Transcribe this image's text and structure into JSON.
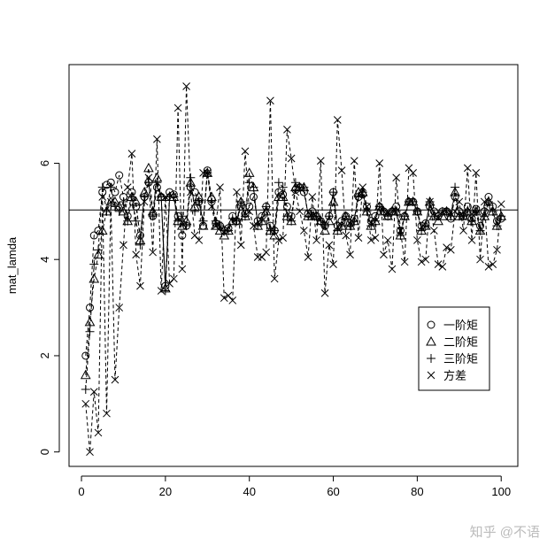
{
  "chart_data": {
    "type": "line",
    "y_label": "mat_lamda",
    "x": [
      1,
      2,
      3,
      4,
      5,
      6,
      7,
      8,
      9,
      10,
      11,
      12,
      13,
      14,
      15,
      16,
      17,
      18,
      19,
      20,
      21,
      22,
      23,
      24,
      25,
      26,
      27,
      28,
      29,
      30,
      31,
      32,
      33,
      34,
      35,
      36,
      37,
      38,
      39,
      40,
      41,
      42,
      43,
      44,
      45,
      46,
      47,
      48,
      49,
      50,
      51,
      52,
      53,
      54,
      55,
      56,
      57,
      58,
      59,
      60,
      61,
      62,
      63,
      64,
      65,
      66,
      67,
      68,
      69,
      70,
      71,
      72,
      73,
      74,
      75,
      76,
      77,
      78,
      79,
      80,
      81,
      82,
      83,
      84,
      85,
      86,
      87,
      88,
      89,
      90,
      91,
      92,
      93,
      94,
      95,
      96,
      97,
      98,
      99,
      100
    ],
    "xlim": [
      -2.96,
      103.96
    ],
    "xticks": [
      0,
      20,
      40,
      60,
      80,
      100
    ],
    "ylim": [
      -0.3,
      8.05
    ],
    "yticks": [
      0,
      2,
      4,
      6
    ],
    "hline": 5.03,
    "legend_position": "right",
    "watermark": "知乎 @不语",
    "series": [
      {
        "name": "一阶矩",
        "marker": "circle",
        "color": "#000000",
        "values": [
          2.0,
          3.0,
          4.5,
          4.6,
          5.4,
          5.55,
          5.6,
          5.4,
          5.75,
          5.3,
          4.9,
          5.4,
          5.1,
          4.5,
          5.3,
          5.6,
          4.9,
          5.5,
          5.3,
          3.45,
          5.4,
          5.35,
          4.9,
          4.5,
          4.7,
          5.5,
          5.4,
          5.2,
          4.7,
          5.85,
          5.25,
          4.75,
          4.7,
          4.6,
          4.65,
          4.9,
          4.8,
          5.1,
          4.95,
          5.1,
          5.3,
          4.8,
          4.9,
          5.1,
          4.7,
          4.6,
          5.4,
          5.35,
          5.1,
          4.9,
          5.45,
          5.5,
          5.4,
          4.95,
          5.0,
          4.9,
          4.8,
          4.7,
          4.9,
          5.4,
          4.7,
          4.8,
          4.9,
          4.75,
          4.85,
          5.3,
          5.35,
          5.1,
          4.8,
          4.9,
          5.1,
          5.0,
          4.9,
          5.0,
          5.1,
          4.6,
          4.9,
          5.2,
          5.2,
          5.0,
          4.7,
          4.75,
          5.1,
          5.0,
          4.9,
          5.0,
          5.0,
          4.85,
          5.3,
          5.0,
          4.9,
          5.1,
          4.85,
          5.05,
          4.7,
          5.0,
          5.3,
          5.1,
          4.8,
          4.85
        ]
      },
      {
        "name": "二阶矩",
        "marker": "triangle",
        "color": "#000000",
        "values": [
          1.6,
          2.7,
          3.6,
          4.1,
          4.6,
          5.0,
          5.2,
          5.2,
          5.1,
          5.0,
          4.8,
          5.3,
          5.2,
          4.4,
          5.4,
          5.9,
          5.0,
          5.7,
          5.3,
          3.4,
          5.3,
          5.3,
          4.8,
          4.7,
          4.8,
          5.6,
          5.1,
          5.3,
          4.7,
          5.8,
          5.3,
          4.7,
          4.6,
          4.5,
          4.6,
          4.8,
          4.8,
          5.2,
          4.9,
          5.8,
          5.5,
          4.7,
          4.8,
          5.0,
          4.6,
          4.5,
          5.3,
          5.3,
          4.9,
          4.8,
          5.5,
          5.5,
          5.5,
          4.9,
          4.9,
          4.9,
          4.8,
          4.6,
          4.8,
          5.2,
          4.6,
          4.7,
          4.9,
          4.7,
          4.8,
          5.4,
          5.4,
          5.0,
          4.7,
          4.8,
          5.1,
          5.0,
          4.9,
          5.0,
          5.0,
          4.5,
          4.9,
          5.2,
          5.2,
          5.0,
          4.6,
          4.7,
          5.2,
          4.9,
          4.8,
          4.9,
          5.0,
          4.9,
          5.4,
          4.9,
          4.9,
          5.0,
          4.8,
          5.0,
          4.6,
          4.9,
          5.2,
          5.0,
          4.7,
          4.9
        ]
      },
      {
        "name": "三阶矩",
        "marker": "plus",
        "color": "#000000",
        "values": [
          1.3,
          2.5,
          3.9,
          4.2,
          5.5,
          5.0,
          5.5,
          5.1,
          5.0,
          5.2,
          4.8,
          5.3,
          4.8,
          4.3,
          5.3,
          5.6,
          4.9,
          5.6,
          5.3,
          3.35,
          5.3,
          5.3,
          4.8,
          4.9,
          4.7,
          5.7,
          5.0,
          5.2,
          4.8,
          5.8,
          5.2,
          4.8,
          4.7,
          4.6,
          4.6,
          4.85,
          4.8,
          5.2,
          4.9,
          5.6,
          5.5,
          4.7,
          4.8,
          5.1,
          4.6,
          4.6,
          5.6,
          5.5,
          4.9,
          4.8,
          5.6,
          5.5,
          5.5,
          4.9,
          4.9,
          4.9,
          4.8,
          4.7,
          4.9,
          5.4,
          4.6,
          4.7,
          4.9,
          4.7,
          4.8,
          5.3,
          5.4,
          5.0,
          4.7,
          4.8,
          5.1,
          5.0,
          4.9,
          5.0,
          5.0,
          4.5,
          4.9,
          5.2,
          5.2,
          5.0,
          4.6,
          4.7,
          5.2,
          4.9,
          4.9,
          5.0,
          5.0,
          4.9,
          5.5,
          4.9,
          4.9,
          5.0,
          4.8,
          5.0,
          4.6,
          4.9,
          5.2,
          5.0,
          4.7,
          4.9
        ]
      },
      {
        "name": "方差",
        "marker": "cross",
        "color": "#000000",
        "values": [
          1.0,
          0.0,
          1.25,
          0.4,
          5.3,
          0.8,
          5.2,
          1.5,
          3.0,
          4.3,
          5.5,
          6.2,
          4.1,
          3.45,
          5.2,
          5.7,
          4.15,
          6.5,
          3.35,
          5.3,
          3.5,
          3.6,
          7.15,
          3.8,
          7.6,
          5.4,
          4.5,
          4.4,
          5.8,
          5.8,
          5.1,
          4.7,
          5.5,
          3.2,
          3.25,
          3.15,
          5.4,
          4.3,
          6.25,
          5.0,
          4.7,
          4.05,
          4.05,
          4.15,
          7.3,
          3.6,
          4.4,
          4.45,
          6.7,
          6.1,
          5.4,
          5.0,
          4.6,
          4.05,
          5.3,
          4.4,
          6.05,
          3.3,
          4.3,
          3.9,
          6.9,
          5.85,
          4.5,
          4.1,
          6.05,
          4.45,
          5.5,
          5.1,
          4.4,
          4.45,
          6.0,
          4.1,
          4.4,
          3.8,
          5.7,
          4.6,
          3.95,
          5.9,
          5.8,
          4.4,
          3.95,
          4.0,
          5.2,
          4.6,
          3.9,
          3.85,
          4.25,
          4.2,
          5.0,
          5.2,
          4.6,
          5.9,
          4.4,
          5.8,
          4.0,
          5.2,
          3.85,
          3.9,
          4.2,
          5.15
        ]
      }
    ]
  }
}
